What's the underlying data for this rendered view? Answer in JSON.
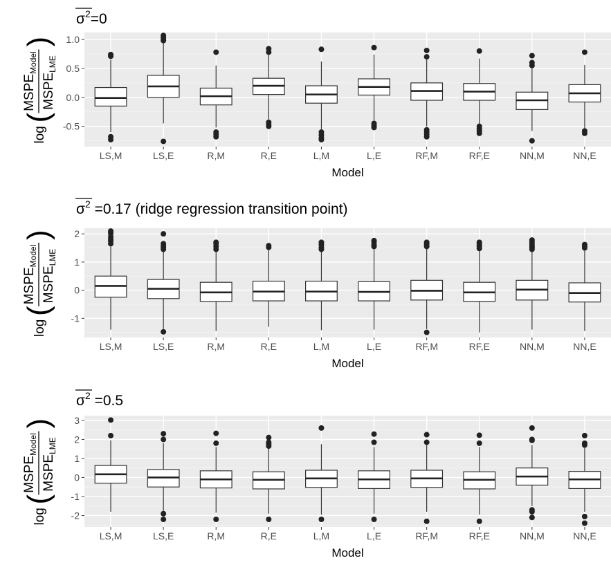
{
  "chart_data": [
    {
      "type": "boxplot",
      "title_symbol": "σ",
      "title_exponent": "2",
      "title_suffix": "=0",
      "xlabel": "Model",
      "ylabel": {
        "prefix": "log",
        "numerator_base": "MSPE",
        "numerator_sub": "Model",
        "denominator_base": "MSPE",
        "denominator_sub": "LME"
      },
      "categories": [
        "LS,M",
        "LS,E",
        "R,M",
        "R,E",
        "L,M",
        "L,E",
        "RF,M",
        "RF,E",
        "NN,M",
        "NN,E"
      ],
      "yticks": [
        1.0,
        0.5,
        0.0,
        -0.5
      ],
      "ytick_labels": [
        "1.0",
        "0.5",
        "0.0",
        "-0.5"
      ],
      "ylim": [
        -0.85,
        1.12
      ],
      "boxes": [
        {
          "min": -0.6,
          "q1": -0.15,
          "median": -0.01,
          "q3": 0.17,
          "max": 0.65,
          "outliers": [
            0.71,
            0.74,
            -0.68,
            -0.73
          ]
        },
        {
          "min": -0.45,
          "q1": 0.0,
          "median": 0.19,
          "q3": 0.38,
          "max": 0.94,
          "outliers": [
            0.98,
            1.01,
            1.04,
            1.07,
            -0.76
          ]
        },
        {
          "min": -0.52,
          "q1": -0.13,
          "median": 0.02,
          "q3": 0.16,
          "max": 0.55,
          "outliers": [
            0.78,
            -0.6,
            -0.64,
            -0.68
          ]
        },
        {
          "min": -0.38,
          "q1": 0.05,
          "median": 0.2,
          "q3": 0.33,
          "max": 0.73,
          "outliers": [
            0.78,
            0.84,
            -0.43,
            -0.47,
            -0.5
          ]
        },
        {
          "min": -0.55,
          "q1": -0.1,
          "median": 0.05,
          "q3": 0.2,
          "max": 0.62,
          "outliers": [
            0.83,
            -0.6,
            -0.65,
            -0.7,
            -0.73
          ]
        },
        {
          "min": -0.4,
          "q1": 0.04,
          "median": 0.18,
          "q3": 0.32,
          "max": 0.74,
          "outliers": [
            0.86,
            -0.45,
            -0.49,
            -0.52
          ]
        },
        {
          "min": -0.5,
          "q1": -0.05,
          "median": 0.11,
          "q3": 0.25,
          "max": 0.65,
          "outliers": [
            0.7,
            0.81,
            -0.56,
            -0.6,
            -0.64,
            -0.68
          ]
        },
        {
          "min": -0.48,
          "q1": -0.05,
          "median": 0.1,
          "q3": 0.24,
          "max": 0.67,
          "outliers": [
            0.8,
            -0.5,
            -0.54,
            -0.58,
            -0.62
          ]
        },
        {
          "min": -0.58,
          "q1": -0.21,
          "median": -0.05,
          "q3": 0.09,
          "max": 0.5,
          "outliers": [
            0.55,
            0.6,
            0.72,
            -0.75
          ]
        },
        {
          "min": -0.55,
          "q1": -0.08,
          "median": 0.07,
          "q3": 0.22,
          "max": 0.56,
          "outliers": [
            0.78,
            -0.58,
            -0.62
          ]
        }
      ]
    },
    {
      "type": "boxplot",
      "title_symbol": "σ",
      "title_exponent": "2",
      "title_suffix": " =0.17 (ridge regression transition point)",
      "xlabel": "Model",
      "ylabel": {
        "prefix": "log",
        "numerator_base": "MSPE",
        "numerator_sub": "Model",
        "denominator_base": "MSPE",
        "denominator_sub": "LME"
      },
      "categories": [
        "LS,M",
        "LS,E",
        "R,M",
        "R,E",
        "L,M",
        "L,E",
        "RF,M",
        "RF,E",
        "NN,M",
        "NN,E"
      ],
      "yticks": [
        2,
        1,
        0,
        -1
      ],
      "ytick_labels": [
        "2",
        "1",
        "0",
        "-1"
      ],
      "ylim": [
        -1.68,
        2.2
      ],
      "boxes": [
        {
          "min": -1.4,
          "q1": -0.25,
          "median": 0.15,
          "q3": 0.5,
          "max": 1.55,
          "outliers": [
            1.65,
            1.75,
            1.82,
            1.9,
            2.02,
            2.1
          ]
        },
        {
          "min": -1.38,
          "q1": -0.3,
          "median": 0.05,
          "q3": 0.38,
          "max": 1.4,
          "outliers": [
            1.45,
            1.52,
            1.58,
            1.65,
            2.0,
            -1.48
          ]
        },
        {
          "min": -1.45,
          "q1": -0.4,
          "median": -0.08,
          "q3": 0.28,
          "max": 1.38,
          "outliers": [
            1.45,
            1.55,
            1.65,
            1.7
          ]
        },
        {
          "min": -1.3,
          "q1": -0.38,
          "median": -0.05,
          "q3": 0.32,
          "max": 1.42,
          "outliers": [
            1.52,
            1.58
          ]
        },
        {
          "min": -1.42,
          "q1": -0.38,
          "median": -0.05,
          "q3": 0.32,
          "max": 1.38,
          "outliers": [
            1.45,
            1.52,
            1.62,
            1.7
          ]
        },
        {
          "min": -1.4,
          "q1": -0.38,
          "median": -0.06,
          "q3": 0.3,
          "max": 1.45,
          "outliers": [
            1.55,
            1.62,
            1.72,
            1.76
          ]
        },
        {
          "min": -1.38,
          "q1": -0.35,
          "median": -0.02,
          "q3": 0.35,
          "max": 1.5,
          "outliers": [
            1.55,
            1.6,
            1.65,
            1.7,
            -1.5
          ]
        },
        {
          "min": -1.5,
          "q1": -0.4,
          "median": -0.08,
          "q3": 0.28,
          "max": 1.42,
          "outliers": [
            1.48,
            1.55,
            1.6,
            1.65,
            1.7
          ]
        },
        {
          "min": -1.4,
          "q1": -0.35,
          "median": 0.02,
          "q3": 0.35,
          "max": 1.4,
          "outliers": [
            1.45,
            1.5,
            1.55,
            1.62,
            1.7,
            1.78
          ]
        },
        {
          "min": -1.45,
          "q1": -0.42,
          "median": -0.1,
          "q3": 0.26,
          "max": 1.4,
          "outliers": [
            1.5,
            1.56,
            1.62
          ]
        }
      ]
    },
    {
      "type": "boxplot",
      "title_symbol": "σ",
      "title_exponent": "2",
      "title_suffix": " =0.5",
      "xlabel": "Model",
      "ylabel": {
        "prefix": "log",
        "numerator_base": "MSPE",
        "numerator_sub": "Model",
        "denominator_base": "MSPE",
        "denominator_sub": "LME"
      },
      "categories": [
        "LS,M",
        "LS,E",
        "R,M",
        "R,E",
        "L,M",
        "L,E",
        "RF,M",
        "RF,E",
        "NN,M",
        "NN,E"
      ],
      "yticks": [
        3,
        2,
        1,
        0,
        -1,
        -2
      ],
      "ytick_labels": [
        "3",
        "2",
        "1",
        "0",
        "-1",
        "-2"
      ],
      "ylim": [
        -2.6,
        3.25
      ],
      "boxes": [
        {
          "min": -1.8,
          "q1": -0.3,
          "median": 0.17,
          "q3": 0.63,
          "max": 1.95,
          "outliers": [
            2.2,
            3.02
          ]
        },
        {
          "min": -1.75,
          "q1": -0.5,
          "median": 0.0,
          "q3": 0.42,
          "max": 1.8,
          "outliers": [
            2.0,
            2.3,
            -1.9,
            -2.2
          ]
        },
        {
          "min": -1.85,
          "q1": -0.55,
          "median": -0.1,
          "q3": 0.35,
          "max": 1.6,
          "outliers": [
            1.8,
            2.32,
            -2.2
          ]
        },
        {
          "min": -1.9,
          "q1": -0.6,
          "median": -0.12,
          "q3": 0.3,
          "max": 1.55,
          "outliers": [
            1.65,
            1.75,
            1.85,
            2.1,
            -2.2
          ]
        },
        {
          "min": -1.95,
          "q1": -0.52,
          "median": -0.05,
          "q3": 0.38,
          "max": 1.75,
          "outliers": [
            2.6,
            -2.2
          ]
        },
        {
          "min": -1.9,
          "q1": -0.58,
          "median": -0.1,
          "q3": 0.35,
          "max": 1.6,
          "outliers": [
            1.85,
            2.28,
            -2.2
          ]
        },
        {
          "min": -1.8,
          "q1": -0.52,
          "median": -0.05,
          "q3": 0.38,
          "max": 1.7,
          "outliers": [
            1.85,
            2.25,
            -2.3
          ]
        },
        {
          "min": -1.95,
          "q1": -0.6,
          "median": -0.12,
          "q3": 0.3,
          "max": 1.6,
          "outliers": [
            1.8,
            2.22,
            -2.3
          ]
        },
        {
          "min": -1.5,
          "q1": -0.4,
          "median": 0.05,
          "q3": 0.5,
          "max": 1.7,
          "outliers": [
            1.95,
            2.0,
            2.6,
            -1.7,
            -1.8,
            -2.1
          ]
        },
        {
          "min": -1.8,
          "q1": -0.58,
          "median": -0.1,
          "q3": 0.32,
          "max": 1.55,
          "outliers": [
            1.7,
            1.8,
            2.2,
            -2.05,
            -2.4
          ]
        }
      ]
    }
  ]
}
